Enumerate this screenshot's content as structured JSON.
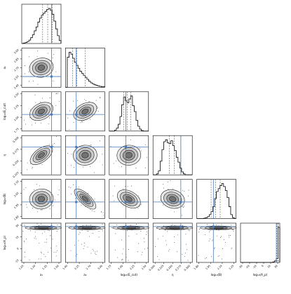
{
  "chart_data": {
    "type": "corner",
    "parameters": [
      {
        "label": "a₁",
        "ticks": [
          "1.05",
          "1.20",
          "1.35",
          "1.50"
        ],
        "range": [
          1.0,
          1.62
        ],
        "truth": 1.47,
        "quantiles": [
          1.33,
          1.41,
          1.48
        ]
      },
      {
        "label": "a₂",
        "ticks": [
          "1.40",
          "2.25",
          "2.70",
          "3.00"
        ],
        "range": [
          1.2,
          3.1
        ],
        "truth": 1.72,
        "quantiles": [
          1.55,
          1.75,
          2.15
        ]
      },
      {
        "label": "log₁₀(E_cut)",
        "ticks": [
          "1.75",
          "2.00",
          "2.25",
          "2.50"
        ],
        "range": [
          1.7,
          2.6
        ],
        "truth": 2.08,
        "quantiles": [
          2.03,
          2.11,
          2.19
        ]
      },
      {
        "label": "η",
        "ticks": [
          "0.200",
          "0.225",
          "0.250",
          "0.275",
          "0.300"
        ],
        "range": [
          0.19,
          0.31
        ],
        "truth": 0.275,
        "quantiles": [
          0.24,
          0.255,
          0.275
        ]
      },
      {
        "label": "log₁₀(B)",
        "ticks": [
          "1.80",
          "1.95",
          "2.10",
          "2.25"
        ],
        "range": [
          1.78,
          2.3
        ],
        "truth": 2.0,
        "quantiles": [
          1.97,
          2.03,
          2.09
        ]
      },
      {
        "label": "log₁₀(A_p)",
        "ticks": [
          "-30",
          "-20",
          "-10",
          "0",
          "10",
          "30"
        ],
        "range": [
          -40,
          40
        ],
        "truth": 33,
        "quantiles": [
          34,
          36,
          37
        ]
      }
    ],
    "row_tick_labels": [
      {
        "label": "a₂",
        "ticks": [
          "3.00",
          "2.85",
          "2.70",
          "2.55",
          "2.40"
        ]
      },
      {
        "label": "log₁₀(E_cut)",
        "ticks": [
          "2.50",
          "2.25",
          "2.00",
          "1.75"
        ]
      },
      {
        "label": "η",
        "ticks": [
          "0.300",
          "0.275",
          "0.250",
          "0.225"
        ]
      },
      {
        "label": "log₁₀(B)",
        "ticks": [
          "2.10",
          "2.05",
          "1.95",
          "1.80"
        ]
      },
      {
        "label": "log₁₀(A_p)",
        "ticks": [
          "30",
          "15",
          "0",
          "-15"
        ]
      }
    ],
    "marginal_hist": [
      [
        0,
        1,
        2,
        4,
        7,
        12,
        18,
        26,
        34,
        44,
        52,
        58,
        62,
        66,
        70,
        72,
        68,
        60,
        46,
        30,
        16,
        6
      ],
      [
        0,
        60,
        70,
        66,
        58,
        50,
        44,
        38,
        32,
        28,
        24,
        20,
        16,
        12,
        9,
        7,
        5,
        4,
        3,
        2,
        1,
        1
      ],
      [
        0,
        0,
        0,
        2,
        6,
        14,
        30,
        54,
        70,
        62,
        58,
        66,
        72,
        52,
        40,
        22,
        10,
        4,
        1,
        0,
        0,
        0
      ],
      [
        0,
        0,
        2,
        8,
        28,
        52,
        68,
        72,
        66,
        64,
        70,
        60,
        50,
        36,
        26,
        14,
        6,
        2,
        0,
        0,
        0,
        0
      ],
      [
        0,
        0,
        0,
        0,
        1,
        2,
        4,
        8,
        14,
        24,
        40,
        54,
        60,
        66,
        70,
        64,
        56,
        42,
        24,
        8,
        2,
        0
      ],
      [
        0,
        0,
        0,
        0,
        0,
        0,
        0,
        0,
        0,
        0,
        0,
        0,
        0,
        0,
        0,
        0,
        0,
        0,
        1,
        3,
        8,
        72
      ]
    ],
    "contour_colors": {
      "line": "#222222",
      "truth": "#4a7ab8",
      "quantile": "#555555",
      "hist": "#000000"
    }
  }
}
